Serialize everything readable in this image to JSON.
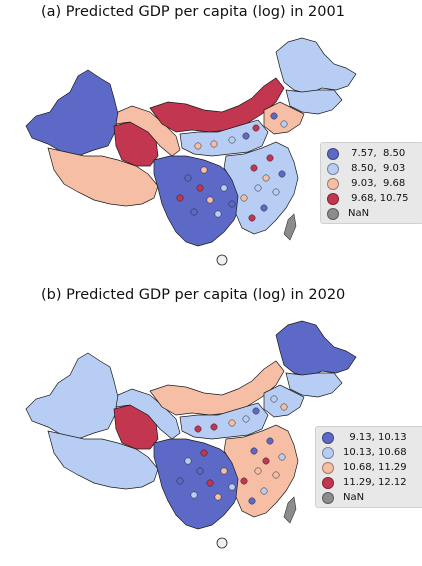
{
  "colors": {
    "c1": "#5d69c7",
    "c2": "#b7cdf3",
    "c3": "#f5bea5",
    "c4": "#c23650",
    "nan": "#8c8c8c"
  },
  "panels": [
    {
      "title": "(a) Predicted GDP per capita (log) in 2001",
      "legend": [
        {
          "label": " 7.57,  8.50",
          "color": "#5d69c7"
        },
        {
          "label": " 8.50,  9.03",
          "color": "#b7cdf3"
        },
        {
          "label": " 9.03,  9.68",
          "color": "#f5bea5"
        },
        {
          "label": " 9.68, 10.75",
          "color": "#c23650"
        },
        {
          "label": "NaN",
          "color": "#8c8c8c"
        }
      ],
      "regions": {
        "xinjiang": "c1",
        "tibet": "c3",
        "qinghai": "c4",
        "gansu": "c3",
        "neimenggu": "c4",
        "heilongjiang": "c2",
        "jilin": "c2",
        "northeast": "c3",
        "south": "c1",
        "east": "c2",
        "north": "c2"
      }
    },
    {
      "title": "(b) Predicted GDP per capita (log) in 2020",
      "legend": [
        {
          "label": "  9.13, 10.13",
          "color": "#5d69c7"
        },
        {
          "label": "10.13, 10.68",
          "color": "#b7cdf3"
        },
        {
          "label": "10.68, 11.29",
          "color": "#f5bea5"
        },
        {
          "label": "11.29, 12.12",
          "color": "#c23650"
        },
        {
          "label": "NaN",
          "color": "#8c8c8c"
        }
      ],
      "regions": {
        "xinjiang": "c2",
        "tibet": "c2",
        "qinghai": "c4",
        "gansu": "c2",
        "neimenggu": "c3",
        "heilongjiang": "c1",
        "jilin": "c2",
        "northeast": "c2",
        "south": "c1",
        "east": "c3",
        "north": "c2"
      }
    }
  ]
}
